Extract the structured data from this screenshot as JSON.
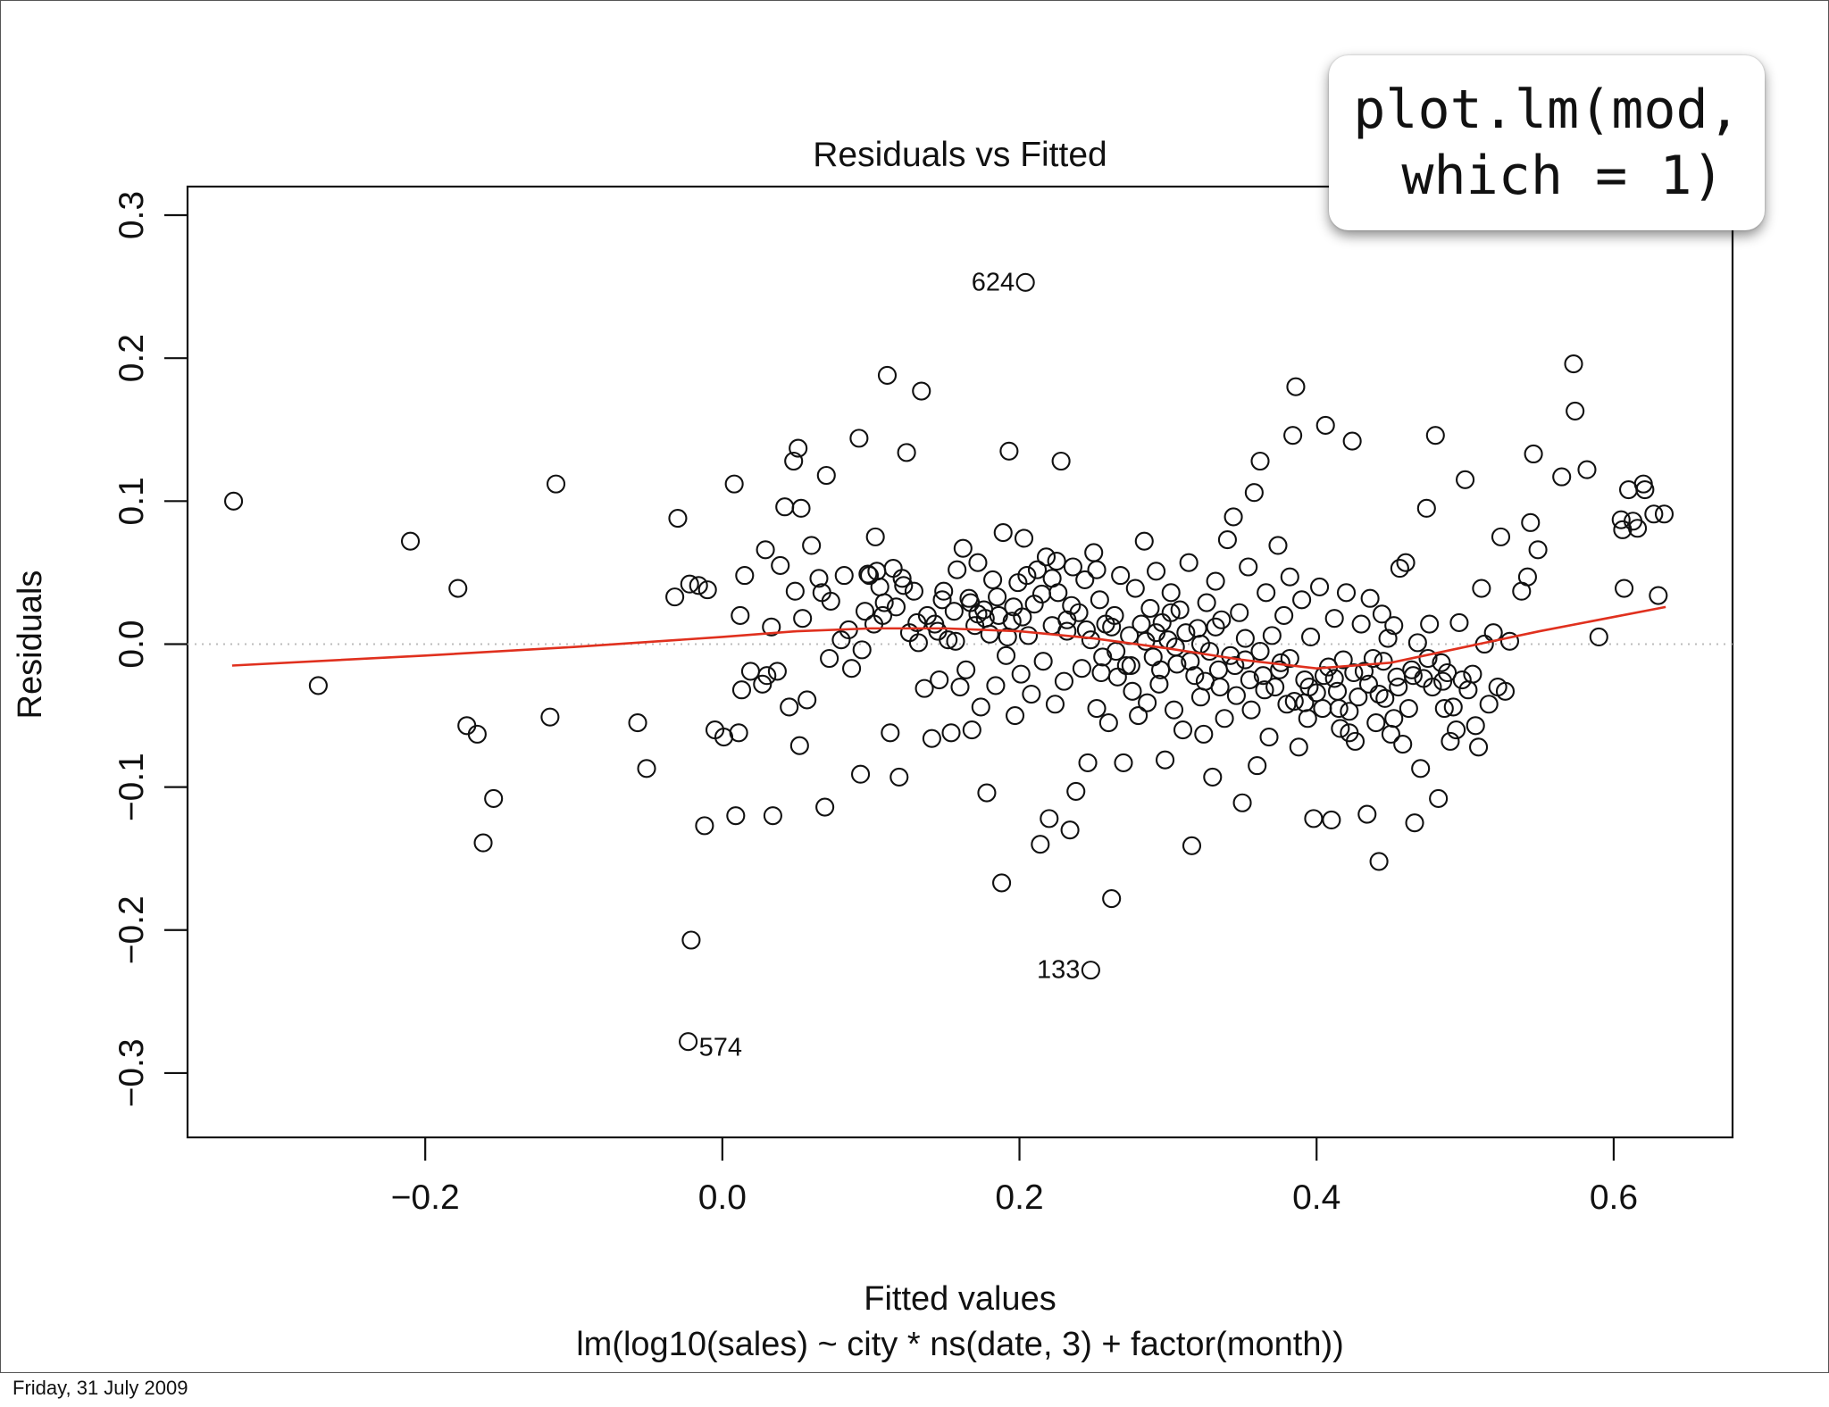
{
  "slide": {
    "footer_date": "Friday, 31 July 2009",
    "code_annotation": "plot.lm(mod,\n which = 1)"
  },
  "chart_data": {
    "type": "scatter",
    "title": "Residuals vs Fitted",
    "xlabel": "Fitted values",
    "subtitle": "lm(log10(sales) ~ city * ns(date, 3) + factor(month))",
    "ylabel": "Residuals",
    "xlim": [
      -0.36,
      0.68
    ],
    "ylim": [
      -0.345,
      0.32
    ],
    "x_ticks": [
      -0.2,
      0.0,
      0.2,
      0.4,
      0.6
    ],
    "x_tick_labels": [
      "−0.2",
      "0.0",
      "0.2",
      "0.4",
      "0.6"
    ],
    "y_ticks": [
      -0.3,
      -0.2,
      -0.1,
      0.0,
      0.1,
      0.2,
      0.3
    ],
    "y_tick_labels": [
      "−0.3",
      "−0.2",
      "−0.1",
      "0.0",
      "0.1",
      "0.2",
      "0.3"
    ],
    "reference_line": {
      "y": 0,
      "style": "dotted",
      "color": "#bbbbbb"
    },
    "smoother": {
      "color": "#e0301e",
      "x": [
        -0.33,
        -0.2,
        -0.1,
        0.0,
        0.05,
        0.1,
        0.15,
        0.2,
        0.25,
        0.3,
        0.35,
        0.4,
        0.45,
        0.5,
        0.55,
        0.6,
        0.635
      ],
      "y": [
        -0.015,
        -0.008,
        -0.002,
        0.005,
        0.009,
        0.011,
        0.011,
        0.009,
        0.004,
        -0.003,
        -0.011,
        -0.017,
        -0.013,
        -0.002,
        0.009,
        0.019,
        0.026
      ]
    },
    "labeled_points": [
      {
        "label": "624",
        "x": 0.204,
        "y": 0.253,
        "side": "left"
      },
      {
        "label": "133",
        "x": 0.248,
        "y": -0.228,
        "side": "left"
      },
      {
        "label": "574",
        "x": -0.023,
        "y": -0.278,
        "side": "right"
      }
    ],
    "points": [
      [
        -0.329,
        0.1
      ],
      [
        -0.272,
        -0.029
      ],
      [
        -0.21,
        0.072
      ],
      [
        -0.178,
        0.039
      ],
      [
        -0.172,
        -0.057
      ],
      [
        -0.165,
        -0.063
      ],
      [
        -0.161,
        -0.139
      ],
      [
        -0.154,
        -0.108
      ],
      [
        -0.116,
        -0.051
      ],
      [
        -0.112,
        0.112
      ],
      [
        -0.057,
        -0.055
      ],
      [
        -0.051,
        -0.087
      ],
      [
        -0.032,
        0.033
      ],
      [
        -0.03,
        0.088
      ],
      [
        -0.022,
        0.042
      ],
      [
        -0.021,
        -0.207
      ],
      [
        -0.016,
        0.041
      ],
      [
        -0.012,
        -0.127
      ],
      [
        -0.01,
        0.038
      ],
      [
        -0.005,
        -0.06
      ],
      [
        0.001,
        -0.065
      ],
      [
        0.008,
        0.112
      ],
      [
        0.009,
        -0.12
      ],
      [
        0.011,
        -0.062
      ],
      [
        0.012,
        0.02
      ],
      [
        0.013,
        -0.032
      ],
      [
        0.015,
        0.048
      ],
      [
        0.019,
        -0.019
      ],
      [
        0.027,
        -0.028
      ],
      [
        0.029,
        0.066
      ],
      [
        0.03,
        -0.022
      ],
      [
        0.033,
        0.012
      ],
      [
        0.034,
        -0.12
      ],
      [
        0.037,
        -0.019
      ],
      [
        0.039,
        0.055
      ],
      [
        0.042,
        0.096
      ],
      [
        0.045,
        -0.044
      ],
      [
        0.048,
        0.128
      ],
      [
        0.049,
        0.037
      ],
      [
        0.051,
        0.137
      ],
      [
        0.052,
        -0.071
      ],
      [
        0.053,
        0.095
      ],
      [
        0.054,
        0.018
      ],
      [
        0.057,
        -0.039
      ],
      [
        0.06,
        0.069
      ],
      [
        0.065,
        0.046
      ],
      [
        0.067,
        0.036
      ],
      [
        0.069,
        -0.114
      ],
      [
        0.07,
        0.118
      ],
      [
        0.072,
        -0.01
      ],
      [
        0.073,
        0.03
      ],
      [
        0.08,
        0.003
      ],
      [
        0.082,
        0.048
      ],
      [
        0.085,
        0.01
      ],
      [
        0.087,
        -0.017
      ],
      [
        0.092,
        0.144
      ],
      [
        0.093,
        -0.091
      ],
      [
        0.094,
        -0.004
      ],
      [
        0.096,
        0.023
      ],
      [
        0.099,
        0.048
      ],
      [
        0.102,
        0.014
      ],
      [
        0.103,
        0.075
      ],
      [
        0.104,
        0.051
      ],
      [
        0.106,
        0.04
      ],
      [
        0.108,
        0.02
      ],
      [
        0.111,
        0.188
      ],
      [
        0.113,
        -0.062
      ],
      [
        0.115,
        0.053
      ],
      [
        0.117,
        0.026
      ],
      [
        0.119,
        -0.093
      ],
      [
        0.121,
        0.046
      ],
      [
        0.124,
        0.134
      ],
      [
        0.126,
        0.008
      ],
      [
        0.129,
        0.037
      ],
      [
        0.132,
        0.001
      ],
      [
        0.134,
        0.177
      ],
      [
        0.136,
        -0.031
      ],
      [
        0.138,
        0.02
      ],
      [
        0.141,
        -0.066
      ],
      [
        0.143,
        0.014
      ],
      [
        0.146,
        -0.025
      ],
      [
        0.149,
        0.037
      ],
      [
        0.152,
        0.003
      ],
      [
        0.154,
        -0.062
      ],
      [
        0.156,
        0.023
      ],
      [
        0.158,
        0.052
      ],
      [
        0.16,
        -0.03
      ],
      [
        0.162,
        0.067
      ],
      [
        0.164,
        -0.018
      ],
      [
        0.166,
        0.032
      ],
      [
        0.168,
        -0.06
      ],
      [
        0.17,
        0.013
      ],
      [
        0.172,
        0.057
      ],
      [
        0.174,
        -0.044
      ],
      [
        0.176,
        0.024
      ],
      [
        0.178,
        -0.104
      ],
      [
        0.18,
        0.007
      ],
      [
        0.182,
        0.045
      ],
      [
        0.184,
        -0.029
      ],
      [
        0.186,
        0.02
      ],
      [
        0.188,
        -0.167
      ],
      [
        0.189,
        0.078
      ],
      [
        0.191,
        -0.008
      ],
      [
        0.193,
        0.135
      ],
      [
        0.195,
        0.016
      ],
      [
        0.197,
        -0.05
      ],
      [
        0.199,
        0.043
      ],
      [
        0.201,
        -0.021
      ],
      [
        0.203,
        0.074
      ],
      [
        0.206,
        0.006
      ],
      [
        0.208,
        -0.035
      ],
      [
        0.21,
        0.028
      ],
      [
        0.212,
        0.052
      ],
      [
        0.214,
        -0.14
      ],
      [
        0.216,
        -0.012
      ],
      [
        0.218,
        0.061
      ],
      [
        0.22,
        -0.122
      ],
      [
        0.222,
        0.013
      ],
      [
        0.224,
        -0.042
      ],
      [
        0.226,
        0.036
      ],
      [
        0.228,
        0.128
      ],
      [
        0.23,
        -0.026
      ],
      [
        0.232,
        0.009
      ],
      [
        0.234,
        -0.13
      ],
      [
        0.236,
        0.054
      ],
      [
        0.238,
        -0.103
      ],
      [
        0.24,
        0.022
      ],
      [
        0.242,
        -0.017
      ],
      [
        0.244,
        0.045
      ],
      [
        0.246,
        -0.083
      ],
      [
        0.248,
        0.003
      ],
      [
        0.25,
        0.064
      ],
      [
        0.252,
        -0.045
      ],
      [
        0.254,
        0.031
      ],
      [
        0.256,
        -0.009
      ],
      [
        0.258,
        0.014
      ],
      [
        0.26,
        -0.055
      ],
      [
        0.262,
        -0.178
      ],
      [
        0.264,
        0.02
      ],
      [
        0.266,
        -0.023
      ],
      [
        0.268,
        0.048
      ],
      [
        0.27,
        -0.083
      ],
      [
        0.272,
        -0.015
      ],
      [
        0.274,
        0.006
      ],
      [
        0.276,
        -0.033
      ],
      [
        0.278,
        0.039
      ],
      [
        0.28,
        -0.05
      ],
      [
        0.282,
        0.014
      ],
      [
        0.284,
        0.072
      ],
      [
        0.286,
        -0.041
      ],
      [
        0.288,
        0.025
      ],
      [
        0.29,
        -0.009
      ],
      [
        0.292,
        0.051
      ],
      [
        0.294,
        -0.028
      ],
      [
        0.296,
        0.015
      ],
      [
        0.298,
        -0.081
      ],
      [
        0.3,
        0.003
      ],
      [
        0.302,
        0.036
      ],
      [
        0.304,
        -0.046
      ],
      [
        0.306,
        -0.014
      ],
      [
        0.308,
        0.024
      ],
      [
        0.31,
        -0.06
      ],
      [
        0.312,
        0.008
      ],
      [
        0.314,
        0.057
      ],
      [
        0.316,
        -0.141
      ],
      [
        0.318,
        -0.022
      ],
      [
        0.32,
        0.011
      ],
      [
        0.322,
        -0.037
      ],
      [
        0.324,
        -0.063
      ],
      [
        0.326,
        0.029
      ],
      [
        0.328,
        -0.005
      ],
      [
        0.33,
        -0.093
      ],
      [
        0.332,
        0.044
      ],
      [
        0.334,
        -0.018
      ],
      [
        0.336,
        0.017
      ],
      [
        0.338,
        -0.052
      ],
      [
        0.34,
        0.073
      ],
      [
        0.342,
        -0.008
      ],
      [
        0.344,
        0.089
      ],
      [
        0.346,
        -0.036
      ],
      [
        0.348,
        0.022
      ],
      [
        0.35,
        -0.111
      ],
      [
        0.352,
        0.004
      ],
      [
        0.354,
        0.054
      ],
      [
        0.356,
        -0.046
      ],
      [
        0.358,
        0.106
      ],
      [
        0.36,
        -0.085
      ],
      [
        0.362,
        0.128
      ],
      [
        0.364,
        -0.022
      ],
      [
        0.366,
        0.036
      ],
      [
        0.368,
        -0.065
      ],
      [
        0.37,
        0.006
      ],
      [
        0.372,
        -0.03
      ],
      [
        0.374,
        0.069
      ],
      [
        0.376,
        -0.013
      ],
      [
        0.378,
        0.02
      ],
      [
        0.38,
        -0.042
      ],
      [
        0.382,
        0.047
      ],
      [
        0.384,
        0.146
      ],
      [
        0.386,
        0.18
      ],
      [
        0.388,
        -0.072
      ],
      [
        0.39,
        0.031
      ],
      [
        0.392,
        -0.025
      ],
      [
        0.394,
        -0.052
      ],
      [
        0.396,
        0.005
      ],
      [
        0.398,
        -0.122
      ],
      [
        0.4,
        -0.034
      ],
      [
        0.402,
        0.04
      ],
      [
        0.404,
        -0.045
      ],
      [
        0.406,
        0.153
      ],
      [
        0.408,
        -0.016
      ],
      [
        0.41,
        -0.123
      ],
      [
        0.412,
        0.018
      ],
      [
        0.414,
        -0.033
      ],
      [
        0.416,
        -0.059
      ],
      [
        0.418,
        -0.011
      ],
      [
        0.42,
        0.036
      ],
      [
        0.422,
        -0.047
      ],
      [
        0.424,
        0.142
      ],
      [
        0.426,
        -0.068
      ],
      [
        0.428,
        -0.037
      ],
      [
        0.43,
        0.014
      ],
      [
        0.432,
        -0.019
      ],
      [
        0.434,
        -0.119
      ],
      [
        0.436,
        0.032
      ],
      [
        0.438,
        -0.01
      ],
      [
        0.44,
        -0.055
      ],
      [
        0.442,
        -0.152
      ],
      [
        0.444,
        0.021
      ],
      [
        0.446,
        -0.038
      ],
      [
        0.448,
        0.004
      ],
      [
        0.45,
        -0.063
      ],
      [
        0.452,
        0.013
      ],
      [
        0.454,
        -0.023
      ],
      [
        0.456,
        0.053
      ],
      [
        0.458,
        -0.07
      ],
      [
        0.46,
        0.057
      ],
      [
        0.462,
        -0.045
      ],
      [
        0.464,
        -0.018
      ],
      [
        0.466,
        -0.125
      ],
      [
        0.468,
        0.001
      ],
      [
        0.47,
        -0.087
      ],
      [
        0.472,
        -0.024
      ],
      [
        0.474,
        0.095
      ],
      [
        0.476,
        0.014
      ],
      [
        0.478,
        -0.03
      ],
      [
        0.48,
        0.146
      ],
      [
        0.482,
        -0.108
      ],
      [
        0.484,
        -0.013
      ],
      [
        0.486,
        -0.045
      ],
      [
        0.488,
        -0.02
      ],
      [
        0.49,
        -0.068
      ],
      [
        0.492,
        -0.044
      ],
      [
        0.494,
        -0.06
      ],
      [
        0.496,
        0.015
      ],
      [
        0.498,
        -0.025
      ],
      [
        0.5,
        0.115
      ],
      [
        0.502,
        -0.032
      ],
      [
        0.505,
        -0.021
      ],
      [
        0.507,
        -0.057
      ],
      [
        0.509,
        -0.072
      ],
      [
        0.511,
        0.039
      ],
      [
        0.513,
        0.0
      ],
      [
        0.516,
        -0.042
      ],
      [
        0.519,
        0.008
      ],
      [
        0.522,
        -0.03
      ],
      [
        0.524,
        0.075
      ],
      [
        0.527,
        -0.033
      ],
      [
        0.53,
        0.002
      ],
      [
        0.538,
        0.037
      ],
      [
        0.542,
        0.047
      ],
      [
        0.544,
        0.085
      ],
      [
        0.546,
        0.133
      ],
      [
        0.549,
        0.066
      ],
      [
        0.565,
        0.117
      ],
      [
        0.573,
        0.196
      ],
      [
        0.574,
        0.163
      ],
      [
        0.582,
        0.122
      ],
      [
        0.59,
        0.005
      ],
      [
        0.605,
        0.087
      ],
      [
        0.606,
        0.08
      ],
      [
        0.607,
        0.039
      ],
      [
        0.61,
        0.108
      ],
      [
        0.613,
        0.086
      ],
      [
        0.616,
        0.081
      ],
      [
        0.62,
        0.112
      ],
      [
        0.621,
        0.108
      ],
      [
        0.627,
        0.091
      ],
      [
        0.63,
        0.034
      ],
      [
        0.634,
        0.091
      ],
      [
        0.098,
        0.049
      ],
      [
        0.109,
        0.029
      ],
      [
        0.122,
        0.041
      ],
      [
        0.131,
        0.015
      ],
      [
        0.145,
        0.009
      ],
      [
        0.157,
        0.002
      ],
      [
        0.167,
        0.029
      ],
      [
        0.177,
        0.018
      ],
      [
        0.185,
        0.033
      ],
      [
        0.196,
        0.026
      ],
      [
        0.205,
        0.048
      ],
      [
        0.215,
        0.035
      ],
      [
        0.225,
        0.058
      ],
      [
        0.235,
        0.027
      ],
      [
        0.245,
        0.01
      ],
      [
        0.255,
        -0.02
      ],
      [
        0.265,
        -0.005
      ],
      [
        0.275,
        -0.015
      ],
      [
        0.285,
        0.002
      ],
      [
        0.295,
        -0.018
      ],
      [
        0.305,
        -0.002
      ],
      [
        0.315,
        -0.012
      ],
      [
        0.325,
        -0.026
      ],
      [
        0.335,
        -0.03
      ],
      [
        0.345,
        -0.015
      ],
      [
        0.355,
        -0.025
      ],
      [
        0.365,
        -0.032
      ],
      [
        0.375,
        -0.018
      ],
      [
        0.385,
        -0.04
      ],
      [
        0.395,
        -0.03
      ],
      [
        0.405,
        -0.022
      ],
      [
        0.415,
        -0.045
      ],
      [
        0.425,
        -0.02
      ],
      [
        0.435,
        -0.028
      ],
      [
        0.445,
        -0.012
      ],
      [
        0.455,
        -0.03
      ],
      [
        0.465,
        -0.022
      ],
      [
        0.475,
        -0.01
      ],
      [
        0.485,
        -0.026
      ],
      [
        0.172,
        0.021
      ],
      [
        0.202,
        0.019
      ],
      [
        0.232,
        0.017
      ],
      [
        0.262,
        0.012
      ],
      [
        0.292,
        0.008
      ],
      [
        0.322,
        0.0
      ],
      [
        0.352,
        -0.011
      ],
      [
        0.382,
        -0.01
      ],
      [
        0.412,
        -0.024
      ],
      [
        0.442,
        -0.035
      ],
      [
        0.148,
        0.031
      ],
      [
        0.192,
        0.005
      ],
      [
        0.222,
        0.046
      ],
      [
        0.252,
        0.052
      ],
      [
        0.302,
        0.022
      ],
      [
        0.332,
        0.012
      ],
      [
        0.362,
        -0.005
      ],
      [
        0.392,
        -0.041
      ],
      [
        0.422,
        -0.062
      ],
      [
        0.452,
        -0.052
      ]
    ]
  }
}
